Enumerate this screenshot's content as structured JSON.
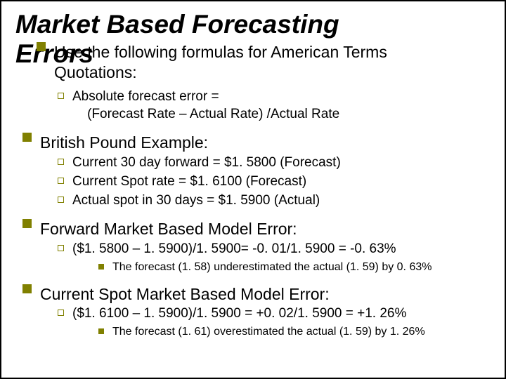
{
  "title_main": "Market Based Forecasting",
  "title_overlap": "Errors",
  "sec1": {
    "heading_line1": "Use the following formulas for American Terms",
    "heading_line2": "Quotations:",
    "item1_line1": "Absolute forecast error =",
    "item1_line2": "    (Forecast Rate – Actual Rate) /Actual Rate"
  },
  "sec2": {
    "heading": "British Pound Example:",
    "i1": "Current 30 day forward = $1. 5800 (Forecast)",
    "i2": "Current Spot rate = $1. 6100 (Forecast)",
    "i3": "Actual spot in 30 days = $1. 5900 (Actual)"
  },
  "sec3": {
    "heading": "Forward Market Based Model Error:",
    "calc": "($1. 5800 – 1. 5900)/1. 5900=  -0. 01/1. 5900 = -0. 63%",
    "note": "The forecast (1. 58) underestimated the actual (1. 59) by 0. 63%"
  },
  "sec4": {
    "heading": "Current Spot Market Based Model Error:",
    "calc": "($1. 6100 – 1. 5900)/1. 5900 = +0. 02/1. 5900 = +1. 26%",
    "note": "The forecast (1. 61) overestimated the actual (1. 59) by 1. 26%"
  },
  "colors": {
    "bullet": "#808000",
    "text": "#000000",
    "bg": "#ffffff"
  }
}
